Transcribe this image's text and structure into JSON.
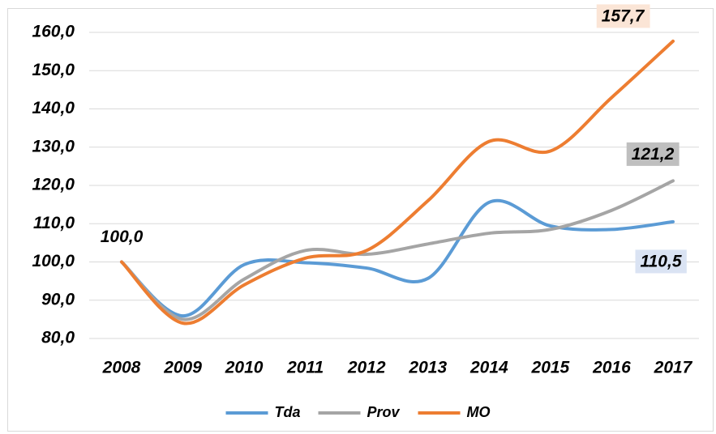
{
  "chart_data": {
    "type": "line",
    "categories": [
      "2008",
      "2009",
      "2010",
      "2011",
      "2012",
      "2013",
      "2014",
      "2015",
      "2016",
      "2017"
    ],
    "series": [
      {
        "name": "Tda",
        "color": "#5b9bd5",
        "label_background": "#dae3f3",
        "values": [
          100,
          85.9,
          99.3,
          99.8,
          98.4,
          95.7,
          115.6,
          109.4,
          108.5,
          110.5
        ],
        "value_labels": [
          "100,0",
          null,
          null,
          null,
          null,
          null,
          null,
          null,
          null,
          "110,5"
        ]
      },
      {
        "name": "Prov",
        "color": "#a5a5a5",
        "label_background": "#bfbfbf",
        "values": [
          100,
          85,
          95.5,
          103,
          102,
          104.7,
          107.5,
          108.5,
          113.5,
          121.2
        ],
        "value_labels": [
          null,
          null,
          null,
          null,
          null,
          null,
          null,
          null,
          null,
          "121,2"
        ]
      },
      {
        "name": "MO",
        "color": "#ed7d31",
        "label_background": "#fbe5d6",
        "values": [
          100,
          84,
          94,
          101,
          103,
          116,
          131.5,
          129,
          143,
          157.7
        ],
        "value_labels": [
          null,
          null,
          null,
          null,
          null,
          null,
          null,
          null,
          null,
          "157,7"
        ]
      }
    ],
    "ylim": [
      80,
      160
    ],
    "yticks": [
      {
        "value": 80,
        "label": "80,0"
      },
      {
        "value": 90,
        "label": "90,0"
      },
      {
        "value": 100,
        "label": "100,0"
      },
      {
        "value": 110,
        "label": "110,0"
      },
      {
        "value": 120,
        "label": "120,0"
      },
      {
        "value": 130,
        "label": "130,0"
      },
      {
        "value": 140,
        "label": "140,0"
      },
      {
        "value": 150,
        "label": "150,0"
      },
      {
        "value": 160,
        "label": "160,0"
      }
    ],
    "grid": true,
    "legend": "bottom"
  }
}
